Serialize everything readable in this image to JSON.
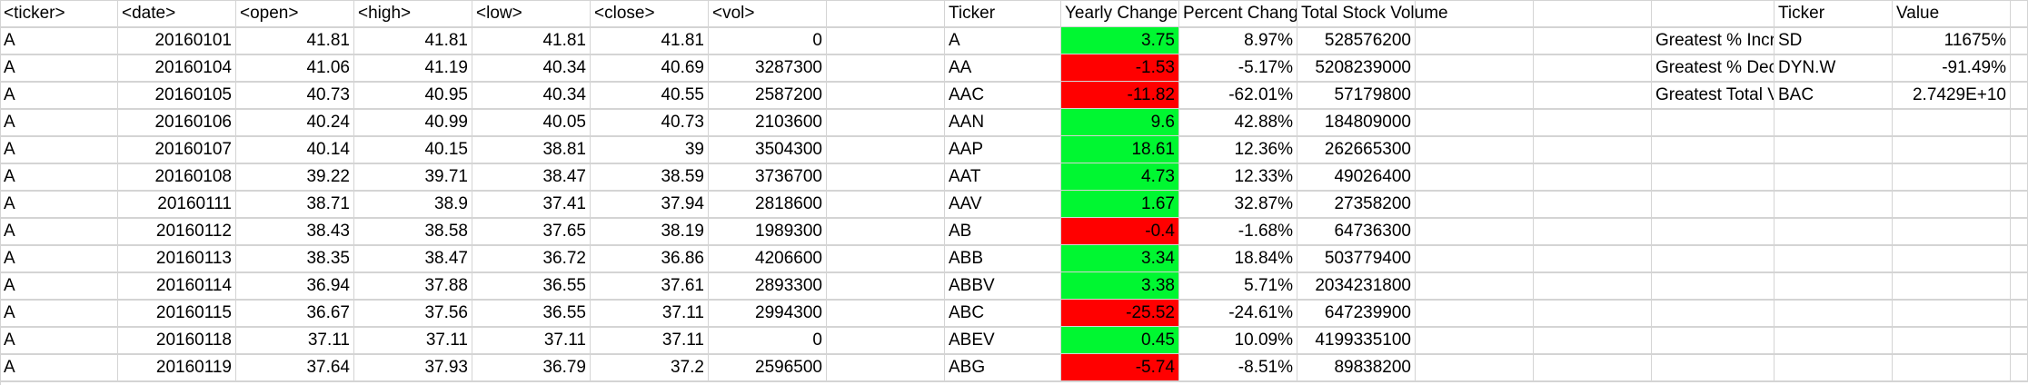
{
  "sheet": {
    "headers": {
      "ticker": "<ticker>",
      "date": "<date>",
      "open": "<open>",
      "high": "<high>",
      "low": "<low>",
      "close": "<close>",
      "vol": "<vol>",
      "summary_ticker": "Ticker",
      "yearly_change": "Yearly Change",
      "percent_change": "Percent Change",
      "total_volume": "Total Stock Volume",
      "greatest_ticker": "Ticker",
      "greatest_value": "Value"
    },
    "raw_rows": [
      [
        "A",
        "20160101",
        "41.81",
        "41.81",
        "41.81",
        "41.81",
        "0"
      ],
      [
        "A",
        "20160104",
        "41.06",
        "41.19",
        "40.34",
        "40.69",
        "3287300"
      ],
      [
        "A",
        "20160105",
        "40.73",
        "40.95",
        "40.34",
        "40.55",
        "2587200"
      ],
      [
        "A",
        "20160106",
        "40.24",
        "40.99",
        "40.05",
        "40.73",
        "2103600"
      ],
      [
        "A",
        "20160107",
        "40.14",
        "40.15",
        "38.81",
        "39",
        "3504300"
      ],
      [
        "A",
        "20160108",
        "39.22",
        "39.71",
        "38.47",
        "38.59",
        "3736700"
      ],
      [
        "A",
        "20160111",
        "38.71",
        "38.9",
        "37.41",
        "37.94",
        "2818600"
      ],
      [
        "A",
        "20160112",
        "38.43",
        "38.58",
        "37.65",
        "38.19",
        "1989300"
      ],
      [
        "A",
        "20160113",
        "38.35",
        "38.47",
        "36.72",
        "36.86",
        "4206600"
      ],
      [
        "A",
        "20160114",
        "36.94",
        "37.88",
        "36.55",
        "37.61",
        "2893300"
      ],
      [
        "A",
        "20160115",
        "36.67",
        "37.56",
        "36.55",
        "37.11",
        "2994300"
      ],
      [
        "A",
        "20160118",
        "37.11",
        "37.11",
        "37.11",
        "37.11",
        "0"
      ],
      [
        "A",
        "20160119",
        "37.64",
        "37.93",
        "36.79",
        "37.2",
        "2596500"
      ]
    ],
    "summary_rows": [
      {
        "ticker": "A",
        "change": "3.75",
        "pct": "8.97%",
        "vol": "528576200",
        "color": "#00f731"
      },
      {
        "ticker": "AA",
        "change": "-1.53",
        "pct": "-5.17%",
        "vol": "5208239000",
        "color": "#ff0000"
      },
      {
        "ticker": "AAC",
        "change": "-11.82",
        "pct": "-62.01%",
        "vol": "57179800",
        "color": "#ff0000"
      },
      {
        "ticker": "AAN",
        "change": "9.6",
        "pct": "42.88%",
        "vol": "184809000",
        "color": "#00f731"
      },
      {
        "ticker": "AAP",
        "change": "18.61",
        "pct": "12.36%",
        "vol": "262665300",
        "color": "#00f731"
      },
      {
        "ticker": "AAT",
        "change": "4.73",
        "pct": "12.33%",
        "vol": "49026400",
        "color": "#00f731"
      },
      {
        "ticker": "AAV",
        "change": "1.67",
        "pct": "32.87%",
        "vol": "27358200",
        "color": "#00f731"
      },
      {
        "ticker": "AB",
        "change": "-0.4",
        "pct": "-1.68%",
        "vol": "64736300",
        "color": "#ff0000"
      },
      {
        "ticker": "ABB",
        "change": "3.34",
        "pct": "18.84%",
        "vol": "503779400",
        "color": "#00f731"
      },
      {
        "ticker": "ABBV",
        "change": "3.38",
        "pct": "5.71%",
        "vol": "2034231800",
        "color": "#00f731"
      },
      {
        "ticker": "ABC",
        "change": "-25.52",
        "pct": "-24.61%",
        "vol": "647239900",
        "color": "#ff0000"
      },
      {
        "ticker": "ABEV",
        "change": "0.45",
        "pct": "10.09%",
        "vol": "4199335100",
        "color": "#00f731"
      },
      {
        "ticker": "ABG",
        "change": "-5.74",
        "pct": "-8.51%",
        "vol": "89838200",
        "color": "#ff0000"
      }
    ],
    "greatest_rows": [
      {
        "label": "Greatest % Increase",
        "ticker": "SD",
        "value": "11675%"
      },
      {
        "label": "Greatest % Decrease",
        "ticker": "DYN.W",
        "value": "-91.49%"
      },
      {
        "label": "Greatest Total Volume",
        "ticker": "BAC",
        "value": "2.7429E+10"
      }
    ],
    "colors": {
      "positive": "#00f731",
      "negative": "#ff0000",
      "gridline": "#d4d4d4"
    }
  }
}
